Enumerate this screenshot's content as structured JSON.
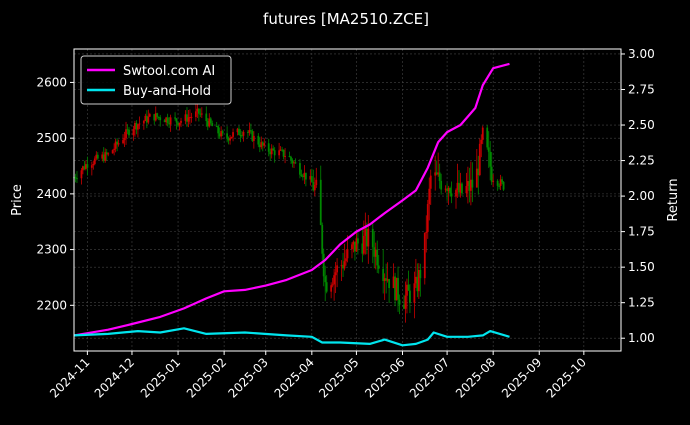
{
  "chart_data": {
    "type": "line",
    "title": "futures [MA2510.ZCE]",
    "ylabel_left": "Price",
    "ylabel_right": "Return",
    "ylim_left": [
      2118,
      2660
    ],
    "ylim_right": [
      0.91,
      3.035
    ],
    "x_ticks": [
      "2024-11",
      "2024-12",
      "2025-01",
      "2025-02",
      "2025-03",
      "2025-04",
      "2025-05",
      "2025-06",
      "2025-07",
      "2025-08",
      "2025-09",
      "2025-10"
    ],
    "y_ticks_left": [
      2200,
      2300,
      2400,
      2500,
      2600
    ],
    "y_ticks_right": [
      1.0,
      1.25,
      1.5,
      1.75,
      2.0,
      2.25,
      2.5,
      2.75,
      3.0
    ],
    "y_ticks_right_labels": [
      "1.00",
      "1.25",
      "1.50",
      "1.75",
      "2.00",
      "2.25",
      "2.50",
      "2.75",
      "3.00"
    ],
    "xlim": [
      "2024-10-23",
      "2025-10-26"
    ],
    "grid": true,
    "legend_position": "top-left",
    "colors": {
      "background": "#000000",
      "ai": "#ff00ff",
      "bh": "#00e5ee",
      "candle_up": "#cc0000",
      "candle_down": "#008800",
      "grid": "#444444"
    },
    "series": [
      {
        "name": "Swtool.com AI",
        "axis": "right",
        "x": [
          "2024-10-23",
          "2024-11-15",
          "2024-12-01",
          "2024-12-20",
          "2025-01-05",
          "2025-01-20",
          "2025-02-01",
          "2025-02-15",
          "2025-03-01",
          "2025-03-15",
          "2025-04-01",
          "2025-04-10",
          "2025-04-20",
          "2025-05-01",
          "2025-05-10",
          "2025-05-20",
          "2025-06-01",
          "2025-06-10",
          "2025-06-18",
          "2025-06-25",
          "2025-07-01",
          "2025-07-10",
          "2025-07-20",
          "2025-07-25",
          "2025-08-01",
          "2025-08-12"
        ],
        "values": [
          1.02,
          1.06,
          1.1,
          1.15,
          1.21,
          1.28,
          1.33,
          1.34,
          1.37,
          1.41,
          1.48,
          1.55,
          1.66,
          1.75,
          1.8,
          1.88,
          1.97,
          2.04,
          2.2,
          2.38,
          2.45,
          2.5,
          2.62,
          2.78,
          2.9,
          2.93
        ]
      },
      {
        "name": "Buy-and-Hold",
        "axis": "right",
        "x": [
          "2024-10-23",
          "2024-11-15",
          "2024-12-05",
          "2024-12-20",
          "2025-01-05",
          "2025-01-20",
          "2025-02-15",
          "2025-03-15",
          "2025-04-01",
          "2025-04-08",
          "2025-04-20",
          "2025-05-10",
          "2025-05-20",
          "2025-06-01",
          "2025-06-10",
          "2025-06-18",
          "2025-06-22",
          "2025-07-01",
          "2025-07-15",
          "2025-07-25",
          "2025-07-30",
          "2025-08-12"
        ],
        "values": [
          1.02,
          1.03,
          1.05,
          1.04,
          1.07,
          1.03,
          1.04,
          1.02,
          1.01,
          0.97,
          0.97,
          0.96,
          0.99,
          0.95,
          0.96,
          0.99,
          1.04,
          1.01,
          1.01,
          1.02,
          1.05,
          1.01
        ]
      },
      {
        "name": "Price",
        "axis": "left",
        "x": [
          "2024-10-23",
          "2024-11-01",
          "2024-11-15",
          "2024-12-01",
          "2024-12-15",
          "2025-01-01",
          "2025-01-15",
          "2025-02-01",
          "2025-02-15",
          "2025-03-01",
          "2025-03-15",
          "2025-04-01",
          "2025-04-05",
          "2025-04-10",
          "2025-04-20",
          "2025-05-01",
          "2025-05-10",
          "2025-05-20",
          "2025-06-01",
          "2025-06-10",
          "2025-06-15",
          "2025-06-20",
          "2025-07-01",
          "2025-07-10",
          "2025-07-20",
          "2025-07-25",
          "2025-08-01",
          "2025-08-10"
        ],
        "values": [
          2430,
          2455,
          2470,
          2520,
          2540,
          2530,
          2545,
          2500,
          2515,
          2480,
          2470,
          2420,
          2400,
          2240,
          2270,
          2310,
          2320,
          2260,
          2210,
          2230,
          2280,
          2430,
          2420,
          2400,
          2420,
          2500,
          2430,
          2410
        ]
      }
    ]
  }
}
